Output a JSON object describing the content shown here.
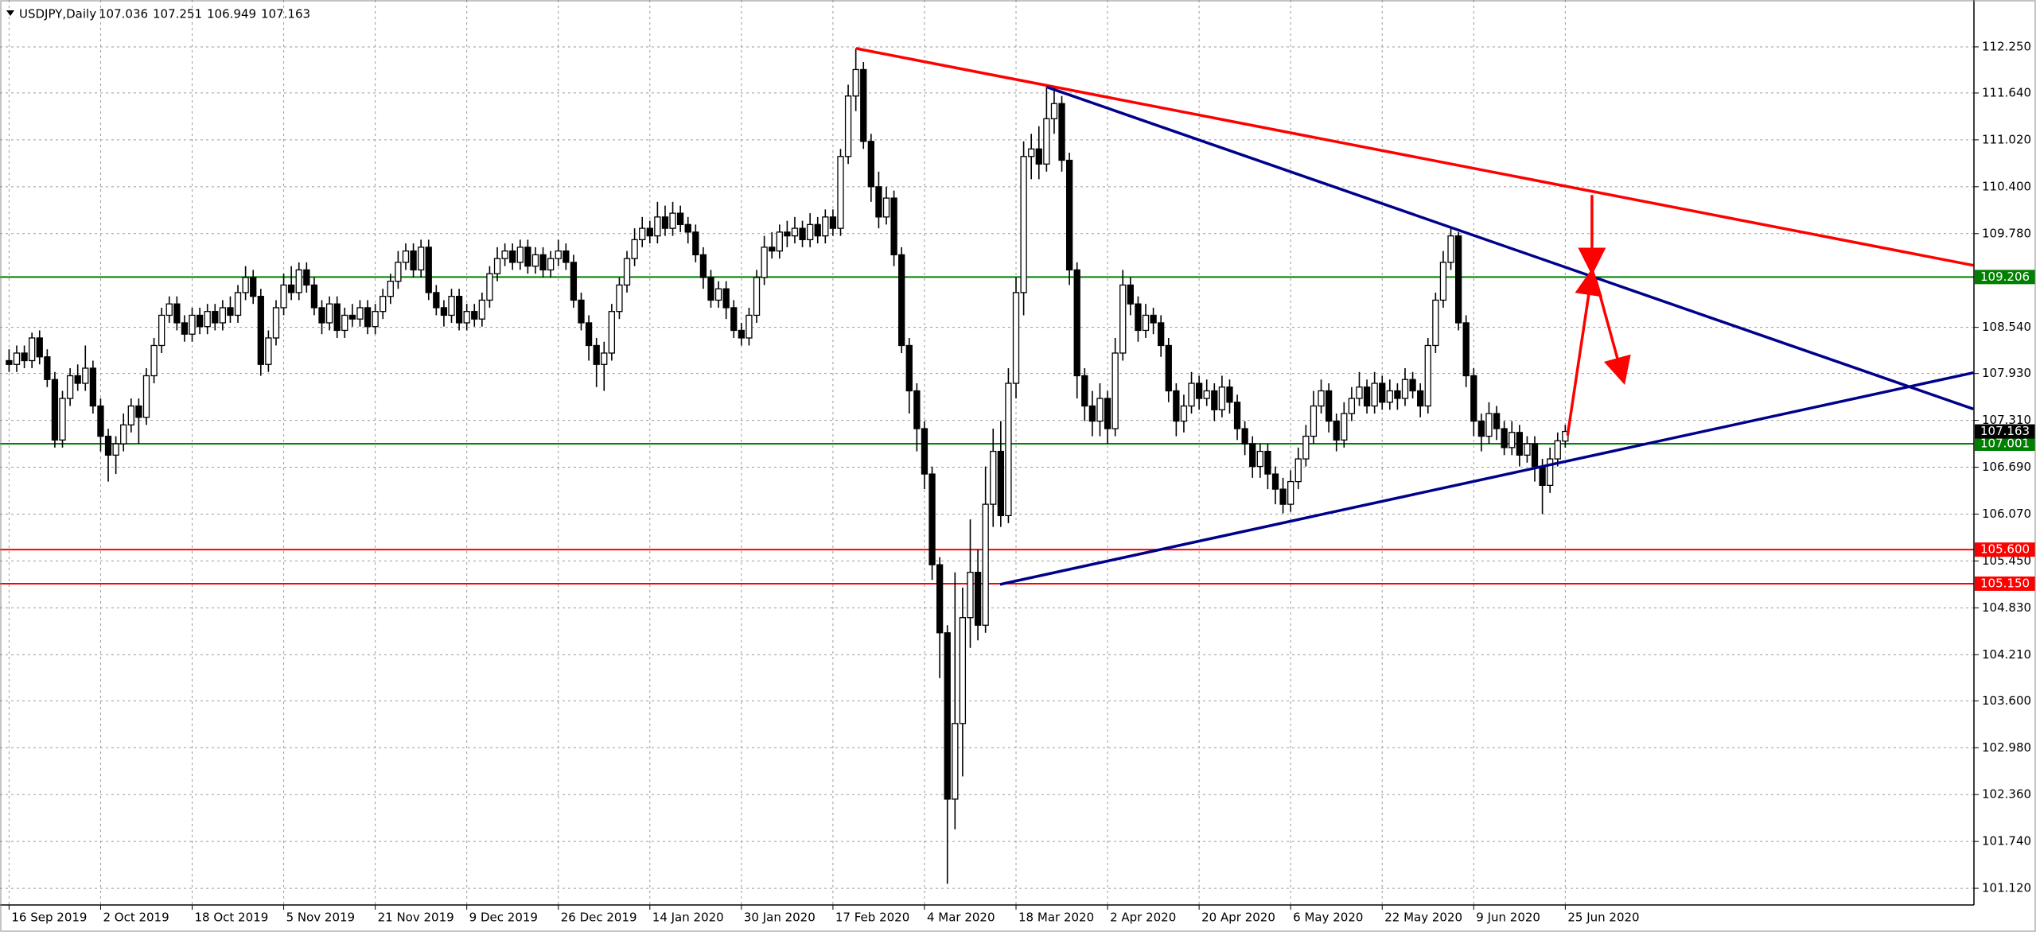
{
  "chart_data": {
    "type": "candlestick",
    "title": "USDJPY,Daily",
    "categories": [
      "16 Sep 2019",
      null,
      null,
      null,
      null,
      null,
      null,
      null,
      null,
      null,
      null,
      null,
      "2 Oct 2019",
      null,
      null,
      null,
      null,
      null,
      null,
      null,
      null,
      null,
      null,
      null,
      "18 Oct 2019",
      null,
      null,
      null,
      null,
      null,
      null,
      null,
      null,
      null,
      null,
      null,
      "5 Nov 2019",
      null,
      null,
      null,
      null,
      null,
      null,
      null,
      null,
      null,
      null,
      null,
      "21 Nov 2019",
      null,
      null,
      null,
      null,
      null,
      null,
      null,
      null,
      null,
      null,
      null,
      "9 Dec 2019",
      null,
      null,
      null,
      null,
      null,
      null,
      null,
      null,
      null,
      null,
      null,
      "26 Dec 2019",
      null,
      null,
      null,
      null,
      null,
      null,
      null,
      null,
      null,
      null,
      null,
      "14 Jan 2020",
      null,
      null,
      null,
      null,
      null,
      null,
      null,
      null,
      null,
      null,
      null,
      "30 Jan 2020",
      null,
      null,
      null,
      null,
      null,
      null,
      null,
      null,
      null,
      null,
      null,
      "17 Feb 2020",
      null,
      null,
      null,
      null,
      null,
      null,
      null,
      null,
      null,
      null,
      null,
      "4 Mar 2020",
      null,
      null,
      null,
      null,
      null,
      null,
      null,
      null,
      null,
      null,
      null,
      "18 Mar 2020",
      null,
      null,
      null,
      null,
      null,
      null,
      null,
      null,
      null,
      null,
      null,
      "2 Apr 2020",
      null,
      null,
      null,
      null,
      null,
      null,
      null,
      null,
      null,
      null,
      null,
      "20 Apr 2020",
      null,
      null,
      null,
      null,
      null,
      null,
      null,
      null,
      null,
      null,
      null,
      "6 May 2020",
      null,
      null,
      null,
      null,
      null,
      null,
      null,
      null,
      null,
      null,
      null,
      "22 May 2020",
      null,
      null,
      null,
      null,
      null,
      null,
      null,
      null,
      null,
      null,
      null,
      "9 Jun 2020",
      null,
      null,
      null,
      null,
      null,
      null,
      null,
      null,
      null,
      null,
      null,
      "25 Jun 2020"
    ],
    "open": [
      108.1,
      108.05,
      108.2,
      108.1,
      108.4,
      108.15,
      107.85,
      107.05,
      107.6,
      107.9,
      107.8,
      108.0,
      107.5,
      107.1,
      106.85,
      107.0,
      107.25,
      107.5,
      107.35,
      107.9,
      108.3,
      108.7,
      108.85,
      108.6,
      108.45,
      108.7,
      108.55,
      108.75,
      108.6,
      108.8,
      108.7,
      109.0,
      109.2,
      108.95,
      108.05,
      108.4,
      108.8,
      109.1,
      109.0,
      109.3,
      109.1,
      108.8,
      108.6,
      108.85,
      108.5,
      108.7,
      108.65,
      108.8,
      108.55,
      108.75,
      108.95,
      109.15,
      109.4,
      109.55,
      109.3,
      109.6,
      109.0,
      108.8,
      108.7,
      108.95,
      108.6,
      108.75,
      108.65,
      108.9,
      109.25,
      109.45,
      109.55,
      109.4,
      109.6,
      109.35,
      109.5,
      109.3,
      109.45,
      109.55,
      109.4,
      108.9,
      108.6,
      108.3,
      108.05,
      108.2,
      108.75,
      109.1,
      109.45,
      109.7,
      109.85,
      109.75,
      110.0,
      109.85,
      110.05,
      109.9,
      109.8,
      109.5,
      109.2,
      108.9,
      109.05,
      108.8,
      108.5,
      108.4,
      108.7,
      109.2,
      109.6,
      109.55,
      109.8,
      109.75,
      109.85,
      109.7,
      109.9,
      109.75,
      110.0,
      109.85,
      110.8,
      111.6,
      111.95,
      111.0,
      110.4,
      110.0,
      110.25,
      109.5,
      108.3,
      107.7,
      107.2,
      106.6,
      105.4,
      104.5,
      102.3,
      103.3,
      104.7,
      105.3,
      104.6,
      106.2,
      106.9,
      106.05,
      107.8,
      109.0,
      110.8,
      110.9,
      110.7,
      111.3,
      111.5,
      110.75,
      109.3,
      107.9,
      107.5,
      107.3,
      107.6,
      107.2,
      108.2,
      109.1,
      108.85,
      108.5,
      108.7,
      108.6,
      108.3,
      107.7,
      107.3,
      107.5,
      107.8,
      107.6,
      107.7,
      107.45,
      107.75,
      107.55,
      107.2,
      107.0,
      106.7,
      106.9,
      106.6,
      106.4,
      106.2,
      106.5,
      106.8,
      107.1,
      107.5,
      107.7,
      107.3,
      107.05,
      107.4,
      107.6,
      107.75,
      107.5,
      107.8,
      107.55,
      107.7,
      107.6,
      107.85,
      107.7,
      107.5,
      108.3,
      108.9,
      109.4,
      109.75,
      108.6,
      107.9,
      107.3,
      107.1,
      107.4,
      107.2,
      106.95,
      107.15,
      106.85,
      107.0,
      106.7,
      106.45,
      106.8,
      107.036
    ],
    "high": [
      108.25,
      108.3,
      108.3,
      108.47,
      108.5,
      108.25,
      107.95,
      107.7,
      108.0,
      108.05,
      108.3,
      108.1,
      107.6,
      107.2,
      107.1,
      107.4,
      107.6,
      107.6,
      108.0,
      108.4,
      108.8,
      108.95,
      108.95,
      108.7,
      108.8,
      108.8,
      108.85,
      108.85,
      108.9,
      108.95,
      109.1,
      109.35,
      109.3,
      109.05,
      108.5,
      108.9,
      109.25,
      109.35,
      109.4,
      109.4,
      109.2,
      108.9,
      108.95,
      108.95,
      108.8,
      108.85,
      108.9,
      108.9,
      108.85,
      109.05,
      109.25,
      109.55,
      109.65,
      109.65,
      109.7,
      109.7,
      109.1,
      108.9,
      109.05,
      109.05,
      108.85,
      108.85,
      109.0,
      109.35,
      109.6,
      109.65,
      109.65,
      109.7,
      109.7,
      109.6,
      109.6,
      109.55,
      109.7,
      109.65,
      109.5,
      109.0,
      108.7,
      108.4,
      108.35,
      108.85,
      109.2,
      109.55,
      109.85,
      110.0,
      109.95,
      110.2,
      110.15,
      110.2,
      110.15,
      110.0,
      109.9,
      109.6,
      109.3,
      109.15,
      109.15,
      108.9,
      108.6,
      108.8,
      109.3,
      109.75,
      109.8,
      109.9,
      109.95,
      110.0,
      109.95,
      110.05,
      110.0,
      110.1,
      110.1,
      110.9,
      111.75,
      112.23,
      112.05,
      111.1,
      110.6,
      110.4,
      110.35,
      109.6,
      108.4,
      107.8,
      107.3,
      106.7,
      105.5,
      104.6,
      105.3,
      105.1,
      106.0,
      105.6,
      106.7,
      107.2,
      107.3,
      108.0,
      109.2,
      111.0,
      111.1,
      111.2,
      111.72,
      111.7,
      111.6,
      110.85,
      109.4,
      108.0,
      107.7,
      107.8,
      107.7,
      108.4,
      109.3,
      109.2,
      108.95,
      108.85,
      108.8,
      108.7,
      108.4,
      107.8,
      107.65,
      107.95,
      107.9,
      107.85,
      107.8,
      107.9,
      107.85,
      107.65,
      107.3,
      107.1,
      107.0,
      107.0,
      106.7,
      106.55,
      106.65,
      106.95,
      107.25,
      107.7,
      107.85,
      107.8,
      107.4,
      107.55,
      107.75,
      107.95,
      107.85,
      107.95,
      107.9,
      107.85,
      107.8,
      108.0,
      107.95,
      107.8,
      108.4,
      109.0,
      109.55,
      109.85,
      109.8,
      108.7,
      108.0,
      107.4,
      107.55,
      107.5,
      107.3,
      107.3,
      107.25,
      107.1,
      107.1,
      106.8,
      106.95,
      107.15,
      107.251
    ],
    "low": [
      107.95,
      107.95,
      108.0,
      108.0,
      108.05,
      107.75,
      106.95,
      106.95,
      107.5,
      107.7,
      107.7,
      107.4,
      106.9,
      106.5,
      106.6,
      106.9,
      107.15,
      107.0,
      107.25,
      107.8,
      108.2,
      108.6,
      108.5,
      108.35,
      108.35,
      108.45,
      108.45,
      108.5,
      108.5,
      108.6,
      108.6,
      108.9,
      108.85,
      107.9,
      107.95,
      108.3,
      108.7,
      108.9,
      108.9,
      109.0,
      108.7,
      108.45,
      108.5,
      108.4,
      108.4,
      108.55,
      108.55,
      108.45,
      108.45,
      108.65,
      108.85,
      109.05,
      109.3,
      109.2,
      109.2,
      108.9,
      108.7,
      108.55,
      108.6,
      108.5,
      108.5,
      108.55,
      108.55,
      108.8,
      109.15,
      109.35,
      109.3,
      109.3,
      109.25,
      109.25,
      109.2,
      109.2,
      109.35,
      109.3,
      108.8,
      108.5,
      108.1,
      107.75,
      107.7,
      108.1,
      108.65,
      109.0,
      109.35,
      109.6,
      109.65,
      109.65,
      109.75,
      109.75,
      109.8,
      109.65,
      109.4,
      109.05,
      108.8,
      108.8,
      108.65,
      108.4,
      108.3,
      108.3,
      108.6,
      109.1,
      109.45,
      109.45,
      109.6,
      109.65,
      109.6,
      109.6,
      109.65,
      109.65,
      109.75,
      109.75,
      110.7,
      111.4,
      110.9,
      110.2,
      109.85,
      109.9,
      109.35,
      108.2,
      107.4,
      106.9,
      106.4,
      105.2,
      103.9,
      101.18,
      101.9,
      102.6,
      104.3,
      104.4,
      104.5,
      105.9,
      105.9,
      105.95,
      107.6,
      108.7,
      110.5,
      110.5,
      110.6,
      111.1,
      110.6,
      109.1,
      107.6,
      107.3,
      107.1,
      107.1,
      107.0,
      107.1,
      108.1,
      108.7,
      108.35,
      108.4,
      108.45,
      108.15,
      107.55,
      107.1,
      107.15,
      107.4,
      107.45,
      107.5,
      107.3,
      107.35,
      107.4,
      107.05,
      106.85,
      106.55,
      106.55,
      106.4,
      106.2,
      106.08,
      106.1,
      106.4,
      106.7,
      107.0,
      107.4,
      107.15,
      106.9,
      106.95,
      107.3,
      107.5,
      107.4,
      107.4,
      107.45,
      107.45,
      107.45,
      107.5,
      107.6,
      107.35,
      107.4,
      108.2,
      108.8,
      109.3,
      108.5,
      107.75,
      107.1,
      106.9,
      107.0,
      107.05,
      106.85,
      106.85,
      106.7,
      106.75,
      106.5,
      106.07,
      106.35,
      106.7,
      106.949
    ],
    "close": [
      108.05,
      108.2,
      108.1,
      108.4,
      108.15,
      107.85,
      107.05,
      107.6,
      107.9,
      107.8,
      108.0,
      107.5,
      107.1,
      106.85,
      107.0,
      107.25,
      107.5,
      107.35,
      107.9,
      108.3,
      108.7,
      108.85,
      108.6,
      108.45,
      108.7,
      108.55,
      108.75,
      108.6,
      108.8,
      108.7,
      109.0,
      109.2,
      108.95,
      108.05,
      108.4,
      108.8,
      109.1,
      109.0,
      109.3,
      109.1,
      108.8,
      108.6,
      108.85,
      108.5,
      108.7,
      108.65,
      108.8,
      108.55,
      108.75,
      108.95,
      109.15,
      109.4,
      109.55,
      109.3,
      109.6,
      109.0,
      108.8,
      108.7,
      108.95,
      108.6,
      108.75,
      108.65,
      108.9,
      109.25,
      109.45,
      109.55,
      109.4,
      109.6,
      109.35,
      109.5,
      109.3,
      109.45,
      109.55,
      109.4,
      108.9,
      108.6,
      108.3,
      108.05,
      108.2,
      108.75,
      109.1,
      109.45,
      109.7,
      109.85,
      109.75,
      110.0,
      109.85,
      110.05,
      109.9,
      109.8,
      109.5,
      109.2,
      108.9,
      109.05,
      108.8,
      108.5,
      108.4,
      108.7,
      109.2,
      109.6,
      109.55,
      109.8,
      109.75,
      109.85,
      109.7,
      109.9,
      109.75,
      110.0,
      109.85,
      110.8,
      111.6,
      111.95,
      111.0,
      110.4,
      110.0,
      110.25,
      109.5,
      108.3,
      107.7,
      107.2,
      106.6,
      105.4,
      104.5,
      102.3,
      103.3,
      104.7,
      105.3,
      104.6,
      106.2,
      106.9,
      106.05,
      107.8,
      109.0,
      110.8,
      110.9,
      110.7,
      111.3,
      111.5,
      110.75,
      109.3,
      107.9,
      107.5,
      107.3,
      107.6,
      107.2,
      108.2,
      109.1,
      108.85,
      108.5,
      108.7,
      108.6,
      108.3,
      107.7,
      107.3,
      107.5,
      107.8,
      107.6,
      107.7,
      107.45,
      107.75,
      107.55,
      107.2,
      107.0,
      106.7,
      106.9,
      106.6,
      106.4,
      106.2,
      106.5,
      106.8,
      107.1,
      107.5,
      107.7,
      107.3,
      107.05,
      107.4,
      107.6,
      107.75,
      107.5,
      107.8,
      107.55,
      107.7,
      107.6,
      107.85,
      107.7,
      107.5,
      108.3,
      108.9,
      109.4,
      109.75,
      108.6,
      107.9,
      107.3,
      107.1,
      107.4,
      107.2,
      106.95,
      107.15,
      106.85,
      107.0,
      106.7,
      106.45,
      106.8,
      107.04,
      107.163
    ],
    "bull_color": "#ffffff",
    "bear_color": "#000000",
    "current_price_color": "#000000",
    "ylim": [
      100.9,
      112.87
    ],
    "yticks": [
      {
        "value": 112.25,
        "label": "112.250"
      },
      {
        "value": 111.64,
        "label": "111.640"
      },
      {
        "value": 111.02,
        "label": "111.020"
      },
      {
        "value": 110.4,
        "label": "110.400"
      },
      {
        "value": 109.78,
        "label": "109.780"
      },
      {
        "value": 108.54,
        "label": "108.540"
      },
      {
        "value": 107.93,
        "label": "107.930"
      },
      {
        "value": 107.31,
        "label": "107.310"
      },
      {
        "value": 106.69,
        "label": "106.690"
      },
      {
        "value": 106.07,
        "label": "106.070"
      },
      {
        "value": 105.45,
        "label": "105.450"
      },
      {
        "value": 104.83,
        "label": "104.830"
      },
      {
        "value": 104.21,
        "label": "104.210"
      },
      {
        "value": 103.6,
        "label": "103.600"
      },
      {
        "value": 102.98,
        "label": "102.980"
      },
      {
        "value": 102.36,
        "label": "102.360"
      },
      {
        "value": 101.74,
        "label": "101.740"
      },
      {
        "value": 101.12,
        "label": "101.120"
      }
    ],
    "grid": true,
    "levels": [
      {
        "value": 109.206,
        "label": "109.206",
        "color": "#008000"
      },
      {
        "value": 107.001,
        "label": "107.001",
        "color": "#008000"
      },
      {
        "value": 105.6,
        "label": "105.600",
        "color": "#ff0000"
      },
      {
        "value": 105.15,
        "label": "105.150",
        "color": "#ff0000"
      }
    ],
    "trendlines": [
      {
        "color": "#ff0000",
        "x": [
          111,
          257.5
        ],
        "y": [
          112.23,
          109.36
        ]
      },
      {
        "color": "#00008b",
        "x": [
          136,
          257.5
        ],
        "y": [
          111.72,
          107.46
        ]
      },
      {
        "color": "#00008b",
        "x": [
          129.9,
          257.5
        ],
        "y": [
          105.14,
          107.94
        ]
      }
    ],
    "arrows": [
      {
        "color": "#ff0000",
        "x": [
          207.5,
          207.5
        ],
        "y": [
          110.29,
          109.3
        ]
      },
      {
        "color": "#ff0000",
        "x": [
          204.3,
          207.5
        ],
        "y": [
          107.11,
          109.26
        ]
      },
      {
        "color": "#ff0000",
        "x": [
          208,
          211.6
        ],
        "y": [
          109.17,
          107.85
        ]
      }
    ]
  }
}
